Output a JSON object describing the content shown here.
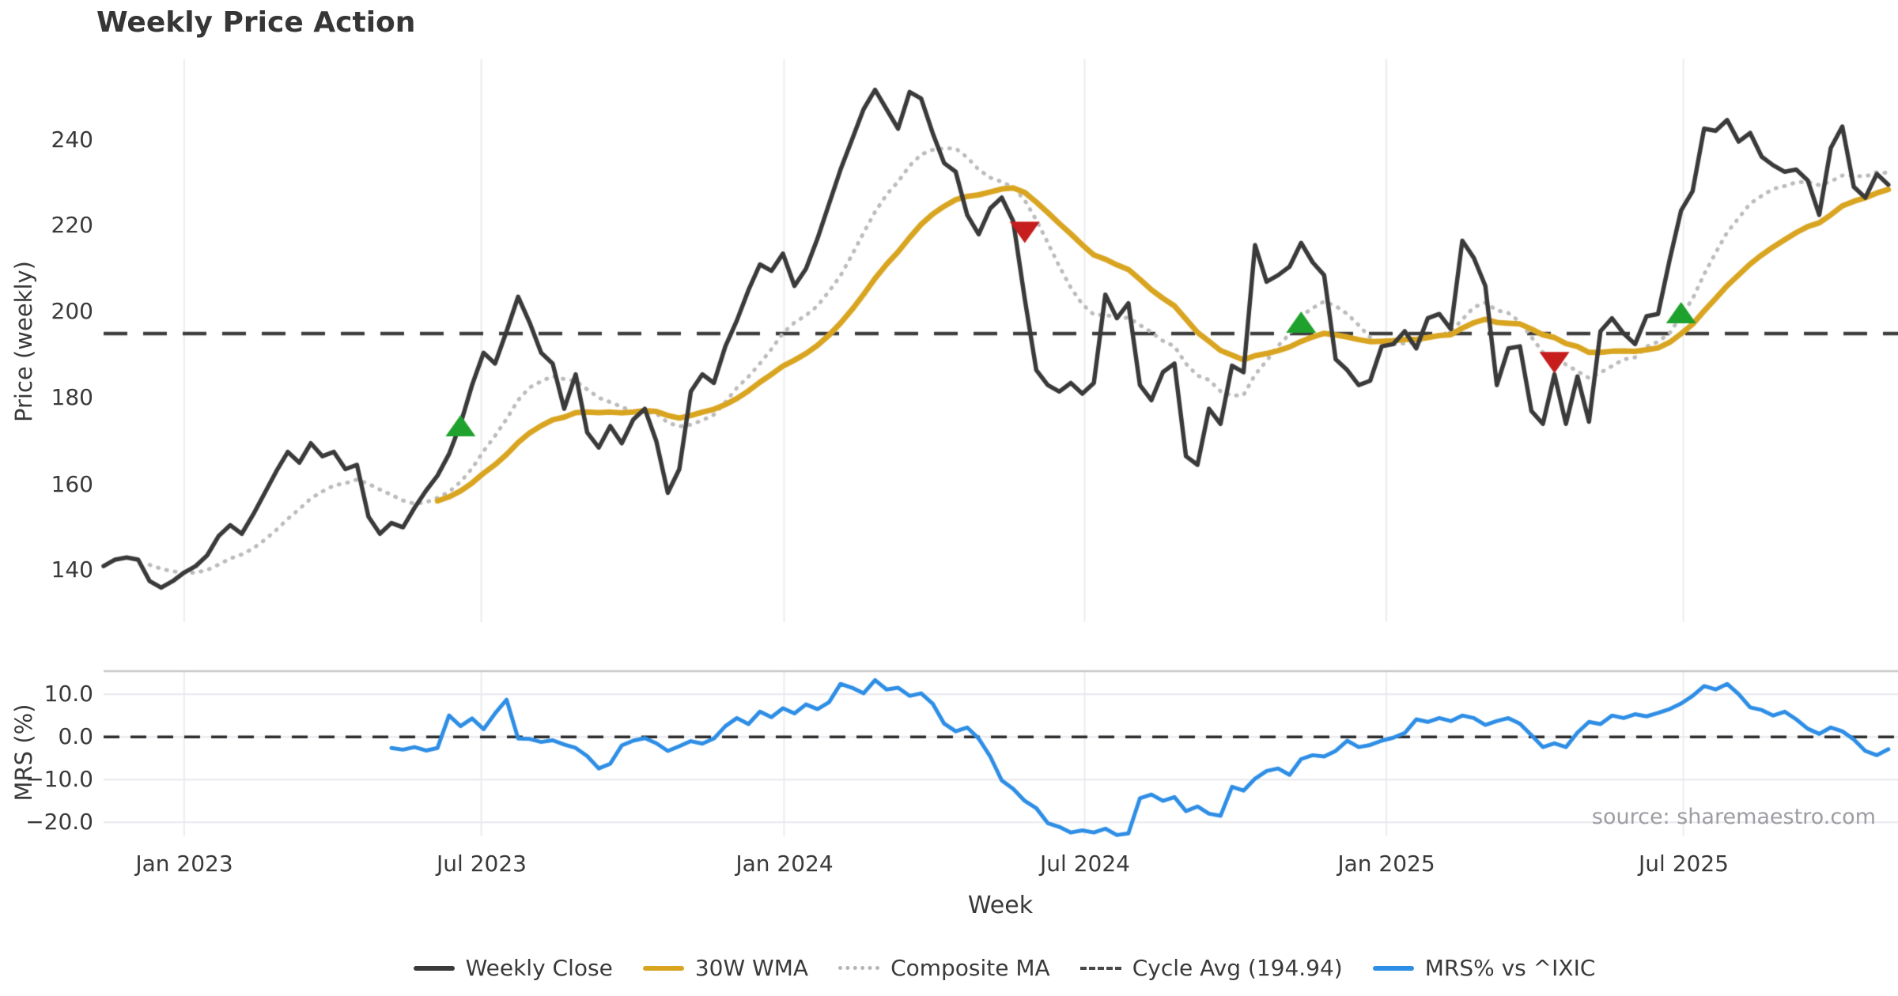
{
  "title": "Weekly Price Action",
  "source": "source: sharemaestro.com",
  "colors": {
    "close": "#3a3a3a",
    "wma": "#d9a521",
    "composite": "#bcbcbc",
    "cycle_avg": "#3d3d3d",
    "mrs": "#2e8ee5",
    "buy": "#1fa12e",
    "sell": "#c61d1d",
    "grid": "#ececec",
    "grid_soft": "#e8e8ee",
    "panel_border": "#c9c9c9"
  },
  "legend": {
    "items": [
      {
        "label": "Weekly Close",
        "style": "solid-dark"
      },
      {
        "label": "30W WMA",
        "style": "solid-gold"
      },
      {
        "label": "Composite MA",
        "style": "dotted-gray"
      },
      {
        "label": "Cycle Avg (194.94)",
        "style": "dashed-dark"
      },
      {
        "label": "MRS% vs ^IXIC",
        "style": "solid-blue"
      }
    ]
  },
  "chart_data": {
    "type": "line",
    "title": "Weekly Price Action",
    "xlabel": "Week",
    "x_tick_labels": [
      "Jan 2023",
      "Jul 2023",
      "Jan 2024",
      "Jul 2024",
      "Jan 2025",
      "Jul 2025"
    ],
    "x_tick_positions": [
      7.0,
      32.8,
      59.1,
      85.2,
      111.4,
      137.2
    ],
    "frequency": "weekly",
    "price_panel": {
      "ylabel": "Price (weekly)",
      "ylim": [
        128.0,
        258.6
      ],
      "ytick_values": [
        240,
        220,
        200,
        180,
        160,
        140
      ],
      "ytick_labels": [
        "240",
        "220",
        "200",
        "180",
        "160",
        "140"
      ],
      "cycle_avg": 194.94,
      "grid": "vertical-only",
      "series": [
        {
          "name": "Weekly Close",
          "values": [
            141,
            142.5,
            143,
            142.5,
            137.5,
            136,
            137.5,
            139.5,
            141,
            143.5,
            148,
            150.5,
            148.5,
            153,
            158,
            163,
            167.5,
            165,
            169.5,
            166.5,
            167.5,
            163.5,
            164.5,
            152.5,
            148.5,
            151,
            150,
            154.5,
            158.5,
            162,
            167,
            174,
            183,
            190.5,
            188,
            195.5,
            203.5,
            197.5,
            190.5,
            188,
            177.5,
            185.5,
            172,
            168.5,
            173.5,
            169.5,
            175,
            177.5,
            170,
            158,
            163.5,
            181.5,
            185.5,
            183.5,
            192,
            198,
            205,
            211,
            209.5,
            213.5,
            206,
            210,
            217,
            225,
            233,
            240,
            247,
            251.5,
            247,
            242.5,
            251,
            249.5,
            241.5,
            234.5,
            232.5,
            222.5,
            218,
            224,
            226.5,
            221,
            203,
            186.5,
            183,
            181.5,
            183.5,
            181,
            183.5,
            204,
            198.5,
            202,
            183,
            179.5,
            186,
            188,
            166.5,
            164.5,
            177.5,
            174,
            187.5,
            186,
            215.5,
            207,
            208.5,
            210.5,
            216,
            211.5,
            208.5,
            189,
            186.5,
            183,
            184,
            192,
            192.5,
            195.5,
            191.5,
            198.5,
            199.5,
            196,
            216.5,
            212.5,
            206,
            183,
            191.5,
            192,
            177,
            174,
            185.5,
            174,
            185,
            174.5,
            195.5,
            198.5,
            195,
            192.5,
            199,
            199.5,
            212,
            223.5,
            228,
            242.5,
            242,
            244.5,
            239.5,
            241.5,
            236,
            234,
            232.5,
            233,
            230.5,
            222.5,
            238,
            243,
            229,
            226.5,
            232,
            229.5
          ]
        },
        {
          "name": "30W WMA",
          "derived": "wma30"
        },
        {
          "name": "Composite MA",
          "derived": "composite_sma_5_10_20"
        }
      ],
      "signals": {
        "buy": [
          {
            "index": 31,
            "price": 173.5
          },
          {
            "index": 104,
            "price": 197.5
          },
          {
            "index": 137,
            "price": 199.7
          }
        ],
        "sell": [
          {
            "index": 80,
            "price": 218.5
          },
          {
            "index": 126,
            "price": 188.3
          }
        ]
      }
    },
    "mrs_panel": {
      "ylabel": "MRS (%)",
      "ylim": [
        -23.3,
        15.4
      ],
      "ytick_values": [
        10.0,
        0.0,
        -10.0,
        -20.0
      ],
      "ytick_labels": [
        "10.0",
        "0.0",
        "−10.0",
        "−20.0"
      ],
      "zero_line": 0,
      "series": [
        {
          "name": "MRS% vs ^IXIC",
          "start_index": 25,
          "values": [
            -2.6,
            -3.0,
            -2.4,
            -3.2,
            -2.6,
            5.0,
            2.5,
            4.3,
            1.8,
            5.5,
            8.7,
            -0.4,
            -0.5,
            -1.2,
            -0.8,
            -1.8,
            -2.6,
            -4.5,
            -7.4,
            -6.3,
            -2.0,
            -0.9,
            -0.3,
            -1.5,
            -3.3,
            -2.2,
            -1.0,
            -1.6,
            -0.4,
            2.5,
            4.4,
            3.0,
            5.9,
            4.6,
            6.7,
            5.5,
            7.6,
            6.5,
            8.1,
            12.4,
            11.5,
            10.2,
            13.3,
            11.1,
            11.5,
            9.6,
            10.2,
            7.8,
            3.1,
            1.3,
            2.2,
            -0.4,
            -4.6,
            -10.2,
            -12.2,
            -15.0,
            -16.7,
            -20.2,
            -21.1,
            -22.4,
            -21.9,
            -22.4,
            -21.5,
            -23.0,
            -22.6,
            -14.4,
            -13.5,
            -15.0,
            -14.1,
            -17.4,
            -16.3,
            -18.0,
            -18.5,
            -11.7,
            -12.6,
            -9.8,
            -8.0,
            -7.4,
            -8.9,
            -5.2,
            -4.3,
            -4.6,
            -3.3,
            -0.9,
            -2.4,
            -1.9,
            -0.9,
            -0.2,
            0.9,
            4.1,
            3.5,
            4.4,
            3.7,
            5.0,
            4.4,
            2.8,
            3.7,
            4.4,
            3.1,
            0.4,
            -2.4,
            -1.5,
            -2.4,
            1.0,
            3.5,
            3.0,
            5.0,
            4.4,
            5.3,
            4.8,
            5.6,
            6.5,
            7.8,
            9.6,
            11.9,
            11.1,
            12.4,
            10.0,
            6.9,
            6.3,
            5.0,
            5.9,
            4.1,
            1.9,
            0.7,
            2.2,
            1.3,
            -0.6,
            -3.3,
            -4.3,
            -2.9
          ]
        }
      ]
    }
  }
}
